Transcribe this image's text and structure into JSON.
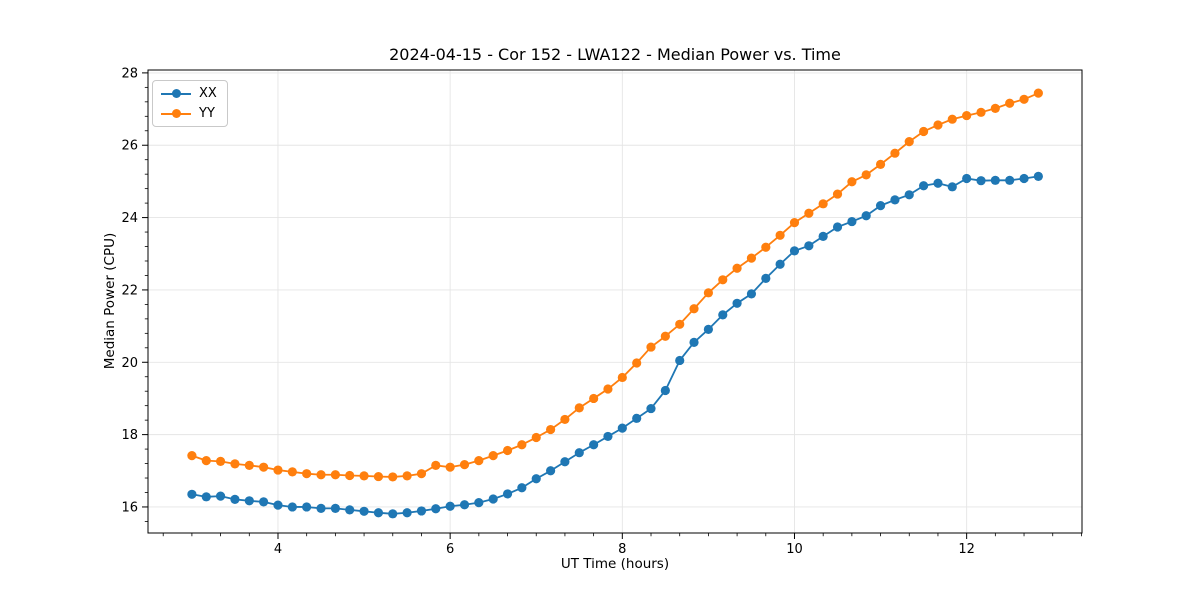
{
  "chart_data": {
    "type": "line",
    "title": "2024-04-15 - Cor 152 - LWA122 - Median Power vs. Time",
    "xlabel": "UT Time (hours)",
    "ylabel": "Median Power (CPU)",
    "xlim": [
      2.49,
      13.34
    ],
    "ylim": [
      15.28,
      28.08
    ],
    "xticks": [
      4,
      6,
      8,
      10,
      12
    ],
    "yticks": [
      16,
      18,
      20,
      22,
      24,
      26,
      28
    ],
    "x_minor_step": 0.3333333,
    "y_minor_step": 0.4,
    "grid": true,
    "legend_position": "upper left",
    "x": [
      3.0,
      3.167,
      3.333,
      3.5,
      3.667,
      3.833,
      4.0,
      4.167,
      4.333,
      4.5,
      4.667,
      4.833,
      5.0,
      5.167,
      5.333,
      5.5,
      5.667,
      5.833,
      6.0,
      6.167,
      6.333,
      6.5,
      6.667,
      6.833,
      7.0,
      7.167,
      7.333,
      7.5,
      7.667,
      7.833,
      8.0,
      8.167,
      8.333,
      8.5,
      8.667,
      8.833,
      9.0,
      9.167,
      9.333,
      9.5,
      9.667,
      9.833,
      10.0,
      10.167,
      10.333,
      10.5,
      10.667,
      10.833,
      11.0,
      11.167,
      11.333,
      11.5,
      11.667,
      11.833,
      12.0,
      12.167,
      12.333,
      12.5,
      12.667,
      12.833
    ],
    "series": [
      {
        "name": "XX",
        "color": "#1f77b4",
        "values": [
          16.35,
          16.28,
          16.3,
          16.21,
          16.17,
          16.14,
          16.05,
          16.0,
          16.0,
          15.96,
          15.96,
          15.92,
          15.88,
          15.84,
          15.81,
          15.84,
          15.89,
          15.95,
          16.02,
          16.06,
          16.12,
          16.22,
          16.36,
          16.53,
          16.78,
          17.0,
          17.25,
          17.5,
          17.72,
          17.95,
          18.18,
          18.45,
          18.72,
          19.22,
          20.05,
          20.55,
          20.91,
          21.31,
          21.63,
          21.89,
          22.32,
          22.71,
          23.08,
          23.22,
          23.48,
          23.74,
          23.89,
          24.05,
          24.33,
          24.49,
          24.63,
          24.88,
          24.95,
          24.85,
          25.08,
          25.02,
          25.03,
          25.03,
          25.08,
          25.14
        ]
      },
      {
        "name": "YY",
        "color": "#ff7f0e",
        "values": [
          17.42,
          17.28,
          17.26,
          17.19,
          17.15,
          17.1,
          17.02,
          16.97,
          16.92,
          16.89,
          16.89,
          16.87,
          16.86,
          16.84,
          16.83,
          16.86,
          16.92,
          17.15,
          17.1,
          17.17,
          17.28,
          17.42,
          17.56,
          17.72,
          17.92,
          18.14,
          18.42,
          18.74,
          19.0,
          19.26,
          19.58,
          19.98,
          20.42,
          20.72,
          21.05,
          21.48,
          21.92,
          22.28,
          22.6,
          22.88,
          23.18,
          23.51,
          23.86,
          24.12,
          24.38,
          24.65,
          24.99,
          25.18,
          25.47,
          25.78,
          26.1,
          26.38,
          26.56,
          26.72,
          26.82,
          26.91,
          27.02,
          27.16,
          27.27,
          27.44
        ]
      }
    ]
  }
}
